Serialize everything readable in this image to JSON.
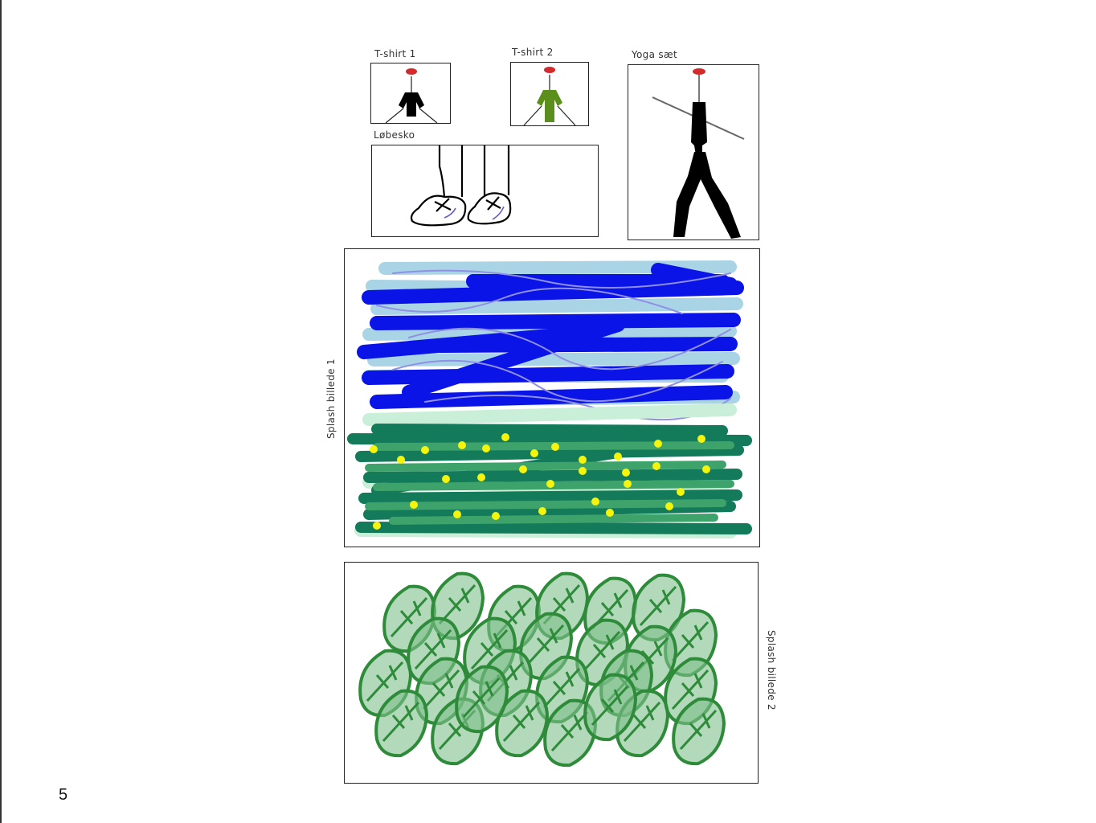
{
  "page_number": "5",
  "labels": {
    "tshirt1": "T-shirt 1",
    "tshirt2": "T-shirt 2",
    "yoga": "Yoga sæt",
    "shoes": "Løbesko",
    "splash1": "Splash billede 1",
    "splash2": "Splash billede 2"
  },
  "colors": {
    "mouth": "#d32b2b",
    "tshirt1": "#000000",
    "tshirt2": "#5a8f1b",
    "sky_dark": "#0a14e6",
    "sky_light": "#a8d4e6",
    "sky_lilac": "#8f8fe6",
    "grass_dark": "#137a5a",
    "grass_mid": "#3ea36a",
    "grass_light": "#c9efd8",
    "flowers": "#f4f40c",
    "leaves": "#2e8b3a",
    "leaves_light": "#7fbf8a"
  }
}
